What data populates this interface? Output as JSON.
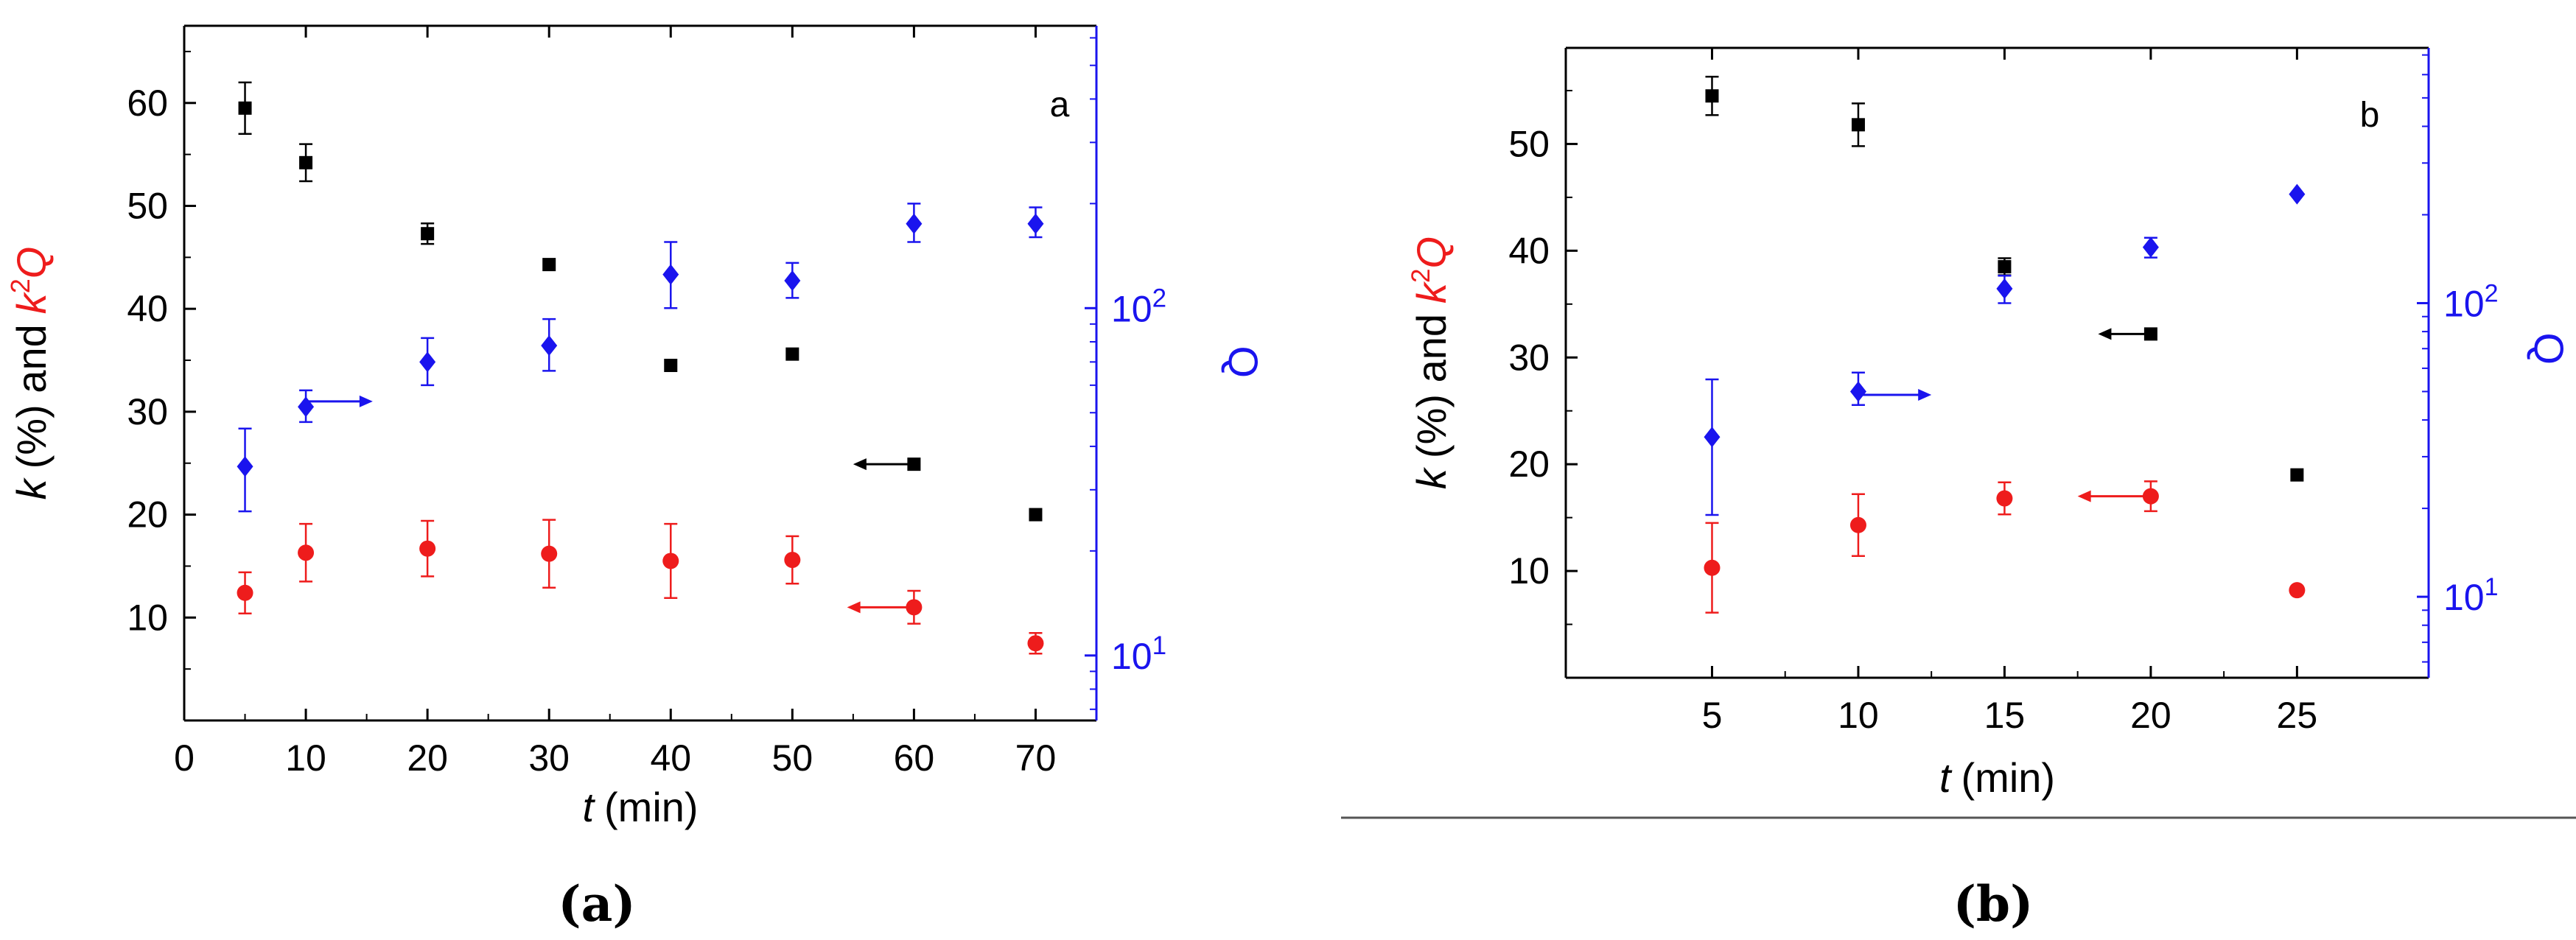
{
  "colors": {
    "black": "#000000",
    "red": "#ee1c1c",
    "blue": "#1a14ee"
  },
  "chart_data": [
    {
      "type": "scatter",
      "panel_label": "a",
      "caption": "(a)",
      "xlabel": {
        "var": "t",
        "unit": "(min)"
      },
      "ylabel_left": {
        "k": "k",
        "mid": "(%) and",
        "k2": "k",
        "sup": "2",
        "q": "Q"
      },
      "ylabel_right": "Q",
      "xlim": [
        0,
        75
      ],
      "ylim_left": [
        0,
        67.5
      ],
      "ylim_right_log": [
        6.5,
        650
      ],
      "xticks": [
        0,
        10,
        20,
        30,
        40,
        50,
        60,
        70
      ],
      "yticks_left": [
        10,
        20,
        30,
        40,
        50,
        60
      ],
      "yticks_right": [
        {
          "value": 10,
          "base": "10",
          "exp": "1"
        },
        {
          "value": 100,
          "base": "10",
          "exp": "2"
        }
      ],
      "series": [
        {
          "axis": "left",
          "marker": "square",
          "color": "#000000",
          "x": [
            5,
            10,
            20,
            30,
            40,
            50,
            60,
            70
          ],
          "y": [
            59.5,
            54.2,
            47.3,
            44.3,
            34.5,
            35.6,
            24.9,
            20.0
          ],
          "err": [
            2.5,
            1.8,
            1.0,
            0,
            0,
            0,
            0,
            0
          ]
        },
        {
          "axis": "left",
          "marker": "circle",
          "color": "#ee1c1c",
          "x": [
            5,
            10,
            20,
            30,
            40,
            50,
            60,
            70
          ],
          "y": [
            12.4,
            16.3,
            16.7,
            16.2,
            15.5,
            15.6,
            11.0,
            7.5
          ],
          "err": [
            2.0,
            2.8,
            2.7,
            3.3,
            3.6,
            2.3,
            1.6,
            1.0
          ]
        },
        {
          "axis": "right",
          "marker": "diamond",
          "color": "#1a14ee",
          "x": [
            5,
            10,
            20,
            30,
            40,
            50,
            60,
            70
          ],
          "y": [
            35,
            52,
            70,
            78,
            125,
            120,
            175,
            175
          ],
          "err_lo": [
            9,
            5,
            10,
            12,
            25,
            13,
            20,
            15
          ],
          "err_hi": [
            10,
            6,
            12,
            15,
            30,
            15,
            25,
            20
          ]
        }
      ],
      "arrows": [
        {
          "from": [
            10,
            31
          ],
          "to": [
            15.5,
            31
          ],
          "color": "#1a14ee"
        },
        {
          "from": [
            60,
            24.9
          ],
          "to": [
            55,
            24.9
          ],
          "color": "#000000"
        },
        {
          "from": [
            60,
            11.0
          ],
          "to": [
            54.5,
            11.0
          ],
          "color": "#ee1c1c"
        }
      ]
    },
    {
      "type": "scatter",
      "panel_label": "b",
      "caption": "(b)",
      "xlabel": {
        "var": "t",
        "unit": "(min)"
      },
      "ylabel_left": {
        "k": "k",
        "mid": "(%) and",
        "k2": "k",
        "sup": "2",
        "q": "Q"
      },
      "ylabel_right": "Q",
      "xlim": [
        0,
        29.5
      ],
      "ylim_left": [
        0,
        59
      ],
      "ylim_right_log": [
        5.3,
        740
      ],
      "xticks": [
        5,
        10,
        15,
        20,
        25
      ],
      "yticks_left": [
        10,
        20,
        30,
        40,
        50
      ],
      "yticks_right": [
        {
          "value": 10,
          "base": "10",
          "exp": "1"
        },
        {
          "value": 100,
          "base": "10",
          "exp": "2"
        }
      ],
      "series": [
        {
          "axis": "left",
          "marker": "square",
          "color": "#000000",
          "x": [
            5,
            10,
            15,
            20,
            25
          ],
          "y": [
            54.5,
            51.8,
            38.5,
            32.2,
            19.0
          ],
          "err": [
            1.8,
            2.0,
            0.8,
            0,
            0
          ]
        },
        {
          "axis": "left",
          "marker": "circle",
          "color": "#ee1c1c",
          "x": [
            5,
            10,
            15,
            20,
            25
          ],
          "y": [
            10.3,
            14.3,
            16.8,
            17.0,
            8.2
          ],
          "err": [
            4.2,
            2.9,
            1.5,
            1.4,
            0
          ]
        },
        {
          "axis": "right",
          "marker": "diamond",
          "color": "#1a14ee",
          "x": [
            5,
            10,
            15,
            20,
            25
          ],
          "y": [
            35,
            50,
            112,
            155,
            235
          ],
          "err_lo": [
            16,
            5,
            12,
            12,
            0
          ],
          "err_hi": [
            20,
            8,
            12,
            12,
            0
          ]
        }
      ],
      "arrows": [
        {
          "from": [
            10,
            26.5
          ],
          "to": [
            12.5,
            26.5
          ],
          "color": "#1a14ee"
        },
        {
          "from": [
            20,
            32.2
          ],
          "to": [
            18.2,
            32.2
          ],
          "color": "#000000"
        },
        {
          "from": [
            20,
            17.0
          ],
          "to": [
            17.5,
            17.0
          ],
          "color": "#ee1c1c"
        }
      ]
    }
  ]
}
